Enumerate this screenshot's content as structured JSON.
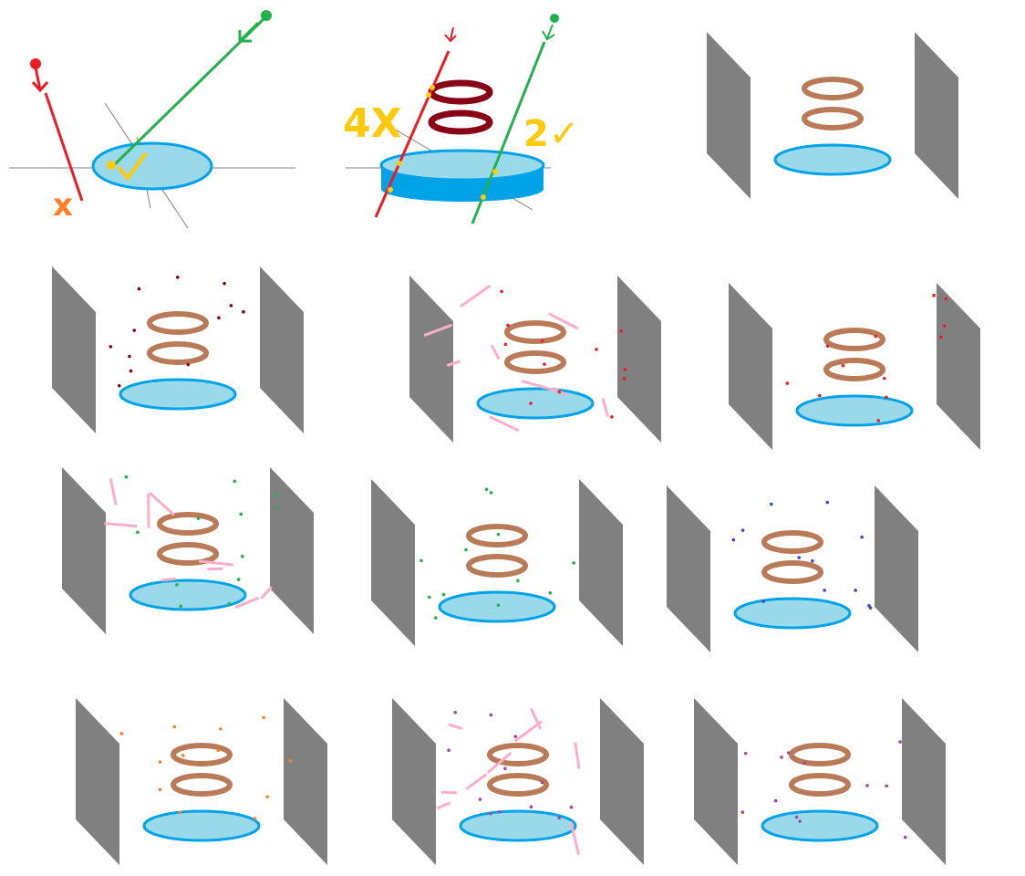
{
  "labels": {
    "reject_mark": "x",
    "accept_mark": "✓",
    "four_x": "4X",
    "two_check": "2✓"
  },
  "colors": {
    "background": "#ffffff",
    "panel": "#808080",
    "disk_fill": "#99d9ea",
    "disk_edge": "#00a2e8",
    "ring": "#b97a57",
    "ring_dark": "#880015",
    "ray_red": "#ed1c24",
    "ray_green": "#22b14c",
    "mark_yellow": "#ffc90e",
    "mark_orange": "#ff7f27",
    "streak_pink": "#ffaec9",
    "dot_darkred": "#880015",
    "dot_red": "#ed1c24",
    "dot_green": "#22b14c",
    "dot_blue": "#3f48cc",
    "dot_orange": "#ff7f27",
    "dot_purple": "#a349a4"
  },
  "panels": [
    {
      "id": "detector-scene-1",
      "dots": "dot_darkred",
      "streaks": false
    },
    {
      "id": "detector-scene-2",
      "dots": "dot_red",
      "streaks": true
    },
    {
      "id": "detector-scene-3",
      "dots": "dot_red",
      "streaks": false
    },
    {
      "id": "detector-scene-4",
      "dots": "dot_green",
      "streaks": true
    },
    {
      "id": "detector-scene-5",
      "dots": "dot_green",
      "streaks": false
    },
    {
      "id": "detector-scene-6",
      "dots": "dot_blue",
      "streaks": false
    },
    {
      "id": "detector-scene-7",
      "dots": "dot_orange",
      "streaks": false
    },
    {
      "id": "detector-scene-8",
      "dots": "dot_purple",
      "streaks": true
    },
    {
      "id": "detector-scene-9",
      "dots": "dot_purple",
      "streaks": false
    }
  ]
}
